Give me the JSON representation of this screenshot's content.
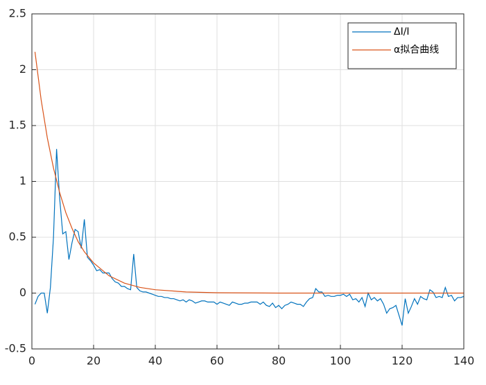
{
  "chart_data": {
    "type": "line",
    "xlim": [
      0,
      140
    ],
    "xticks": [
      0,
      20,
      40,
      60,
      80,
      100,
      120,
      140
    ],
    "ylim": [
      -0.5,
      2.5
    ],
    "yticks": [
      -0.5,
      0,
      0.5,
      1,
      1.5,
      2,
      2.5
    ],
    "grid": true,
    "legend": "top-right",
    "series": [
      {
        "name": "ΔI/I",
        "color": "#0072bd",
        "x": [
          1,
          2,
          3,
          4,
          5,
          6,
          7,
          8,
          9,
          10,
          11,
          12,
          13,
          14,
          15,
          16,
          17,
          18,
          19,
          20,
          21,
          22,
          23,
          24,
          25,
          26,
          27,
          28,
          29,
          30,
          31,
          32,
          33,
          34,
          35,
          36,
          37,
          38,
          39,
          40,
          41,
          42,
          43,
          44,
          45,
          46,
          47,
          48,
          49,
          50,
          51,
          52,
          53,
          54,
          55,
          56,
          57,
          58,
          59,
          60,
          61,
          62,
          63,
          64,
          65,
          66,
          67,
          68,
          69,
          70,
          71,
          72,
          73,
          74,
          75,
          76,
          77,
          78,
          79,
          80,
          81,
          82,
          83,
          84,
          85,
          86,
          87,
          88,
          89,
          90,
          91,
          92,
          93,
          94,
          95,
          96,
          97,
          98,
          99,
          100,
          101,
          102,
          103,
          104,
          105,
          106,
          107,
          108,
          109,
          110,
          111,
          112,
          113,
          114,
          115,
          116,
          117,
          118,
          119,
          120,
          121,
          122,
          123,
          124,
          125,
          126,
          127,
          128,
          129,
          130,
          131,
          132,
          133,
          134,
          135,
          136,
          137,
          138,
          139,
          140
        ],
        "values": [
          -0.1,
          -0.03,
          0,
          0,
          -0.18,
          0.05,
          0.5,
          1.29,
          0.85,
          0.53,
          0.55,
          0.3,
          0.45,
          0.57,
          0.55,
          0.4,
          0.66,
          0.32,
          0.29,
          0.25,
          0.2,
          0.21,
          0.18,
          0.18,
          0.18,
          0.13,
          0.1,
          0.09,
          0.06,
          0.06,
          0.04,
          0.03,
          0.35,
          0.05,
          0.02,
          0.01,
          0.01,
          0,
          -0.01,
          -0.02,
          -0.03,
          -0.03,
          -0.04,
          -0.04,
          -0.05,
          -0.05,
          -0.06,
          -0.07,
          -0.06,
          -0.08,
          -0.06,
          -0.07,
          -0.09,
          -0.08,
          -0.07,
          -0.07,
          -0.08,
          -0.08,
          -0.08,
          -0.1,
          -0.08,
          -0.09,
          -0.1,
          -0.11,
          -0.08,
          -0.09,
          -0.1,
          -0.1,
          -0.09,
          -0.09,
          -0.08,
          -0.08,
          -0.08,
          -0.1,
          -0.08,
          -0.11,
          -0.12,
          -0.09,
          -0.13,
          -0.11,
          -0.14,
          -0.11,
          -0.1,
          -0.08,
          -0.09,
          -0.1,
          -0.1,
          -0.12,
          -0.08,
          -0.05,
          -0.04,
          0.04,
          0.01,
          0.01,
          -0.03,
          -0.02,
          -0.03,
          -0.03,
          -0.02,
          -0.02,
          -0.01,
          -0.03,
          -0.01,
          -0.06,
          -0.05,
          -0.08,
          -0.04,
          -0.12,
          0,
          -0.06,
          -0.04,
          -0.07,
          -0.05,
          -0.1,
          -0.18,
          -0.14,
          -0.13,
          -0.11,
          -0.2,
          -0.29,
          -0.05,
          -0.18,
          -0.12,
          -0.05,
          -0.1,
          -0.03,
          -0.05,
          -0.06,
          0.03,
          0.01,
          -0.04,
          -0.03,
          -0.04,
          0.05,
          -0.03,
          -0.02,
          -0.07,
          -0.04,
          -0.04,
          -0.03
        ]
      },
      {
        "name": "α拟合曲线",
        "color": "#d95319",
        "x": [
          1,
          3,
          5,
          7,
          9,
          11,
          13,
          15,
          17,
          20,
          25,
          30,
          35,
          40,
          50,
          60,
          80,
          100,
          120,
          140
        ],
        "values": [
          2.16,
          1.73,
          1.39,
          1.12,
          0.9,
          0.72,
          0.58,
          0.46,
          0.37,
          0.27,
          0.155,
          0.089,
          0.051,
          0.03,
          0.01,
          0.003,
          0,
          0,
          0,
          0
        ]
      }
    ]
  }
}
